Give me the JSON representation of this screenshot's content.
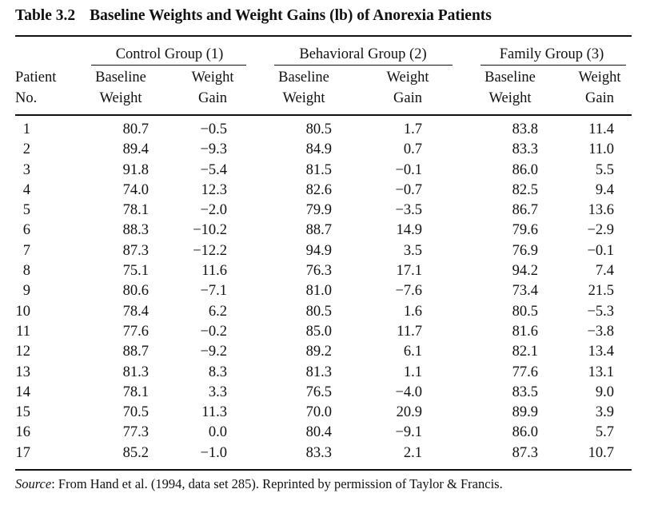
{
  "table": {
    "number": "Table 3.2",
    "title": "Baseline Weights and Weight Gains (lb) of Anorexia Patients",
    "groups": [
      "Control Group (1)",
      "Behavioral Group (2)",
      "Family Group (3)"
    ],
    "patient_header": [
      "Patient",
      "No."
    ],
    "baseline_header": [
      "Baseline",
      "Weight"
    ],
    "gain_header": [
      "Weight",
      "Gain"
    ],
    "rows": [
      {
        "no": "1",
        "c_base": "80.7",
        "c_gain": "−0.5",
        "b_base": "80.5",
        "b_gain": "1.7",
        "f_base": "83.8",
        "f_gain": "11.4"
      },
      {
        "no": "2",
        "c_base": "89.4",
        "c_gain": "−9.3",
        "b_base": "84.9",
        "b_gain": "0.7",
        "f_base": "83.3",
        "f_gain": "11.0"
      },
      {
        "no": "3",
        "c_base": "91.8",
        "c_gain": "−5.4",
        "b_base": "81.5",
        "b_gain": "−0.1",
        "f_base": "86.0",
        "f_gain": "5.5"
      },
      {
        "no": "4",
        "c_base": "74.0",
        "c_gain": "12.3",
        "b_base": "82.6",
        "b_gain": "−0.7",
        "f_base": "82.5",
        "f_gain": "9.4"
      },
      {
        "no": "5",
        "c_base": "78.1",
        "c_gain": "−2.0",
        "b_base": "79.9",
        "b_gain": "−3.5",
        "f_base": "86.7",
        "f_gain": "13.6"
      },
      {
        "no": "6",
        "c_base": "88.3",
        "c_gain": "−10.2",
        "b_base": "88.7",
        "b_gain": "14.9",
        "f_base": "79.6",
        "f_gain": "−2.9"
      },
      {
        "no": "7",
        "c_base": "87.3",
        "c_gain": "−12.2",
        "b_base": "94.9",
        "b_gain": "3.5",
        "f_base": "76.9",
        "f_gain": "−0.1"
      },
      {
        "no": "8",
        "c_base": "75.1",
        "c_gain": "11.6",
        "b_base": "76.3",
        "b_gain": "17.1",
        "f_base": "94.2",
        "f_gain": "7.4"
      },
      {
        "no": "9",
        "c_base": "80.6",
        "c_gain": "−7.1",
        "b_base": "81.0",
        "b_gain": "−7.6",
        "f_base": "73.4",
        "f_gain": "21.5"
      },
      {
        "no": "10",
        "c_base": "78.4",
        "c_gain": "6.2",
        "b_base": "80.5",
        "b_gain": "1.6",
        "f_base": "80.5",
        "f_gain": "−5.3"
      },
      {
        "no": "11",
        "c_base": "77.6",
        "c_gain": "−0.2",
        "b_base": "85.0",
        "b_gain": "11.7",
        "f_base": "81.6",
        "f_gain": "−3.8"
      },
      {
        "no": "12",
        "c_base": "88.7",
        "c_gain": "−9.2",
        "b_base": "89.2",
        "b_gain": "6.1",
        "f_base": "82.1",
        "f_gain": "13.4"
      },
      {
        "no": "13",
        "c_base": "81.3",
        "c_gain": "8.3",
        "b_base": "81.3",
        "b_gain": "1.1",
        "f_base": "77.6",
        "f_gain": "13.1"
      },
      {
        "no": "14",
        "c_base": "78.1",
        "c_gain": "3.3",
        "b_base": "76.5",
        "b_gain": "−4.0",
        "f_base": "83.5",
        "f_gain": "9.0"
      },
      {
        "no": "15",
        "c_base": "70.5",
        "c_gain": "11.3",
        "b_base": "70.0",
        "b_gain": "20.9",
        "f_base": "89.9",
        "f_gain": "3.9"
      },
      {
        "no": "16",
        "c_base": "77.3",
        "c_gain": "0.0",
        "b_base": "80.4",
        "b_gain": "−9.1",
        "f_base": "86.0",
        "f_gain": "5.7"
      },
      {
        "no": "17",
        "c_base": "85.2",
        "c_gain": "−1.0",
        "b_base": "83.3",
        "b_gain": "2.1",
        "f_base": "87.3",
        "f_gain": "10.7"
      }
    ]
  },
  "source": {
    "label": "Source",
    "text": ": From Hand et al. (1994, data set 285). Reprinted by permission of Taylor & Francis."
  }
}
